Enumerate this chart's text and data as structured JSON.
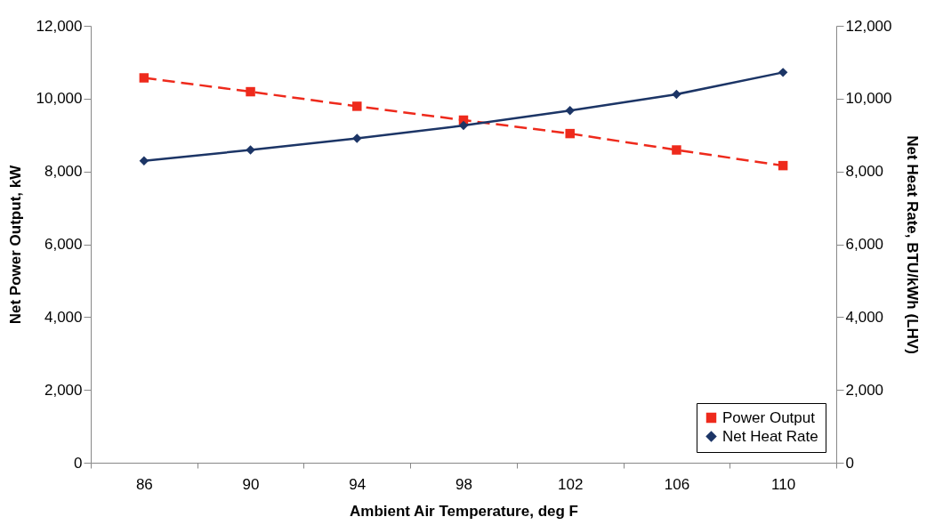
{
  "chart_data": {
    "type": "line",
    "xlabel": "Ambient Air Temperature, deg F",
    "ylabel": "Net Power Output, kW",
    "y2label": "Net Heat Rate, BTU/kWh (LHV)",
    "categories": [
      "86",
      "90",
      "94",
      "98",
      "102",
      "106",
      "110"
    ],
    "series": [
      {
        "name": "Power Output",
        "color": "#ee2a1c",
        "marker": "square",
        "line_style": "dashed",
        "values": [
          10570,
          10190,
          9790,
          9410,
          9040,
          8590,
          8160
        ]
      },
      {
        "name": "Net Heat Rate",
        "color": "#1c3566",
        "marker": "diamond",
        "line_style": "solid",
        "axis": "y2",
        "values": [
          8290,
          8590,
          8910,
          9260,
          9670,
          10120,
          10720
        ]
      }
    ],
    "ylim": [
      0,
      12000
    ],
    "yticks": [
      0,
      {
        "value": 2000,
        "label": "2,000"
      },
      {
        "value": 4000,
        "label": "4,000"
      },
      {
        "value": 6000,
        "label": "6,000"
      },
      {
        "value": 8000,
        "label": "8,000"
      },
      {
        "value": 10000,
        "label": "10,000"
      },
      {
        "value": 12000,
        "label": "12,000"
      }
    ],
    "y2lim": [
      0,
      12000
    ],
    "y2ticks": [
      0,
      {
        "value": 2000,
        "label": "2,000"
      },
      {
        "value": 4000,
        "label": "4,000"
      },
      {
        "value": 6000,
        "label": "6,000"
      },
      {
        "value": 8000,
        "label": "8,000"
      },
      {
        "value": 10000,
        "label": "10,000"
      },
      {
        "value": 12000,
        "label": "12,000"
      }
    ],
    "grid": false,
    "legend": "bottom right"
  }
}
